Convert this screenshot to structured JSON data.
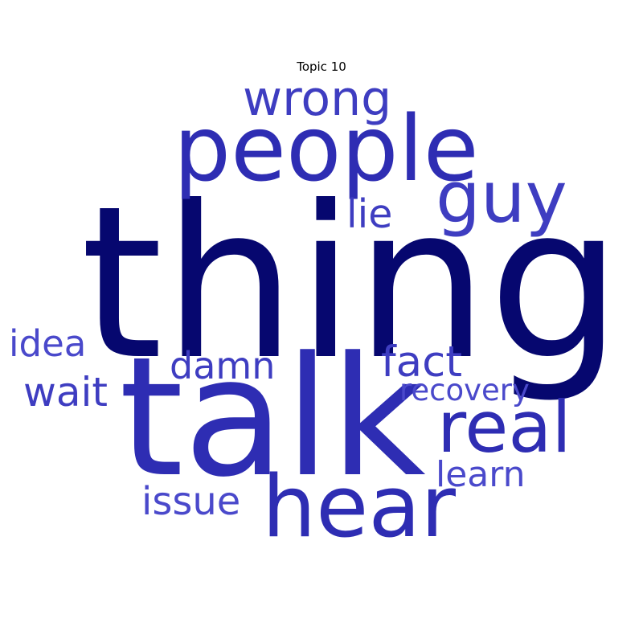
{
  "title": "Topic 10",
  "colors": {
    "dark_navy": "#06076f",
    "royal_blue": "#2e2db3",
    "medium_blue": "#3e3dc1",
    "light_blue": "#4a49cb"
  },
  "words": [
    {
      "text": "thing",
      "color": "#06076f"
    },
    {
      "text": "talk",
      "color": "#2e2db3"
    },
    {
      "text": "people",
      "color": "#2e2db3"
    },
    {
      "text": "hear",
      "color": "#2e2db3"
    },
    {
      "text": "real",
      "color": "#2e2db3"
    },
    {
      "text": "guy",
      "color": "#3e3dc1"
    },
    {
      "text": "wrong",
      "color": "#3e3dc1"
    },
    {
      "text": "fact",
      "color": "#3e3dc1"
    },
    {
      "text": "lie",
      "color": "#3e3dc1"
    },
    {
      "text": "damn",
      "color": "#3e3dc1"
    },
    {
      "text": "wait",
      "color": "#3e3dc1"
    },
    {
      "text": "idea",
      "color": "#4a49cb"
    },
    {
      "text": "issue",
      "color": "#4a49cb"
    },
    {
      "text": "learn",
      "color": "#4a49cb"
    },
    {
      "text": "recovery",
      "color": "#4a49cb"
    }
  ]
}
